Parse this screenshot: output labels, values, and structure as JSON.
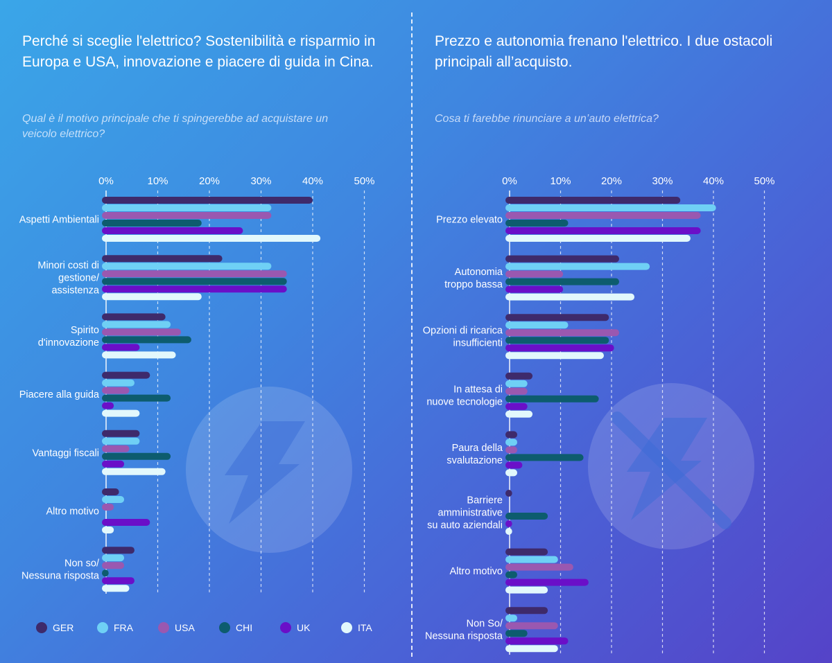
{
  "colors": {
    "GER": "#3e2a6b",
    "FRA": "#6fd0f5",
    "USA": "#9a58b0",
    "CHI": "#0d5c6e",
    "UK": "#6a0fc8",
    "ITA": "#e2f8fc"
  },
  "left": {
    "title": "Perché si sceglie l'elettrico? Sostenibilità e risparmio in Europa e USA, innovazione e piacere di guida in Cina.",
    "subtitle": "Qual è il motivo principale che ti spingerebbe ad acquistare un veicolo elettrico?",
    "icon": "lightning-icon"
  },
  "right": {
    "title": "Prezzo e autonomia frenano l'elettrico. I due ostacoli principali all’acquisto.",
    "subtitle": "Cosa ti farebbe rinunciare a un’auto elettrica?",
    "icon": "crossed-lightning-icon"
  },
  "legend": [
    "GER",
    "FRA",
    "USA",
    "CHI",
    "UK",
    "ITA"
  ],
  "chart_data": [
    {
      "type": "bar",
      "orientation": "horizontal",
      "x_ticks": [
        "0%",
        "10%",
        "20%",
        "30%",
        "40%",
        "50%"
      ],
      "xlim": [
        0,
        50
      ],
      "grid": true,
      "categories": [
        [
          "Aspetti Ambientali"
        ],
        [
          "Minori costi di",
          "gestione/",
          "assistenza"
        ],
        [
          "Spirito",
          "d'innovazione"
        ],
        [
          "Piacere alla guida"
        ],
        [
          "Vantaggi fiscali"
        ],
        [
          "Altro motivo"
        ],
        [
          "Non so/",
          "Nessuna risposta"
        ]
      ],
      "series": [
        {
          "name": "GER",
          "values": [
            40,
            22.5,
            11.5,
            8.5,
            6.5,
            2.5,
            5.5
          ]
        },
        {
          "name": "FRA",
          "values": [
            32,
            32,
            12.5,
            5.5,
            6.5,
            3.5,
            3.5
          ]
        },
        {
          "name": "USA",
          "values": [
            32,
            35,
            14.5,
            4.5,
            4.5,
            1.5,
            3.5
          ]
        },
        {
          "name": "CHI",
          "values": [
            18.5,
            35,
            16.5,
            12.5,
            12.5,
            0,
            0.5
          ]
        },
        {
          "name": "UK",
          "values": [
            26.5,
            35,
            6.5,
            1.5,
            3.5,
            8.5,
            5.5
          ]
        },
        {
          "name": "ITA",
          "values": [
            41.5,
            18.5,
            13.5,
            6.5,
            11.5,
            1.5,
            4.5
          ]
        }
      ],
      "legend_position": "bottom"
    },
    {
      "type": "bar",
      "orientation": "horizontal",
      "x_ticks": [
        "0%",
        "10%",
        "20%",
        "30%",
        "40%",
        "50%"
      ],
      "xlim": [
        0,
        50
      ],
      "grid": true,
      "categories": [
        [
          "Prezzo elevato"
        ],
        [
          "Autonomia",
          "troppo bassa"
        ],
        [
          "Opzioni di ricarica",
          "insufficienti"
        ],
        [
          "In attesa di",
          "nuove tecnologie"
        ],
        [
          "Paura della",
          "svalutazione"
        ],
        [
          "Barriere",
          "amministrative",
          "su auto aziendali"
        ],
        [
          "Altro motivo"
        ],
        [
          "Non So/",
          "Nessuna risposta"
        ]
      ],
      "series": [
        {
          "name": "GER",
          "values": [
            33.5,
            21.5,
            19.5,
            4.5,
            1.5,
            0.5,
            7.5,
            7.5
          ]
        },
        {
          "name": "FRA",
          "values": [
            40.5,
            27.5,
            11.5,
            3.5,
            1.5,
            0,
            9.5,
            1.5
          ]
        },
        {
          "name": "USA",
          "values": [
            37.5,
            10.5,
            21.5,
            3.5,
            1.5,
            0,
            12.5,
            9.5
          ]
        },
        {
          "name": "CHI",
          "values": [
            11.5,
            21.5,
            19.5,
            17.5,
            14.5,
            7.5,
            1.5,
            3.5
          ]
        },
        {
          "name": "UK",
          "values": [
            37.5,
            10.5,
            20.5,
            3.5,
            2.5,
            0.5,
            15.5,
            11.5
          ]
        },
        {
          "name": "ITA",
          "values": [
            35.5,
            24.5,
            18.5,
            4.5,
            1.5,
            0.5,
            7.5,
            9.5
          ]
        }
      ]
    }
  ]
}
